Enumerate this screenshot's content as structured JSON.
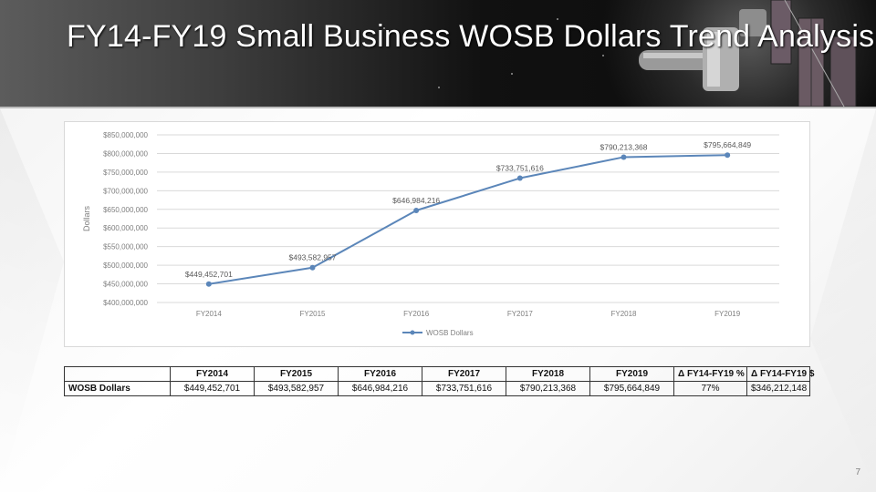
{
  "slide": {
    "title": "FY14-FY19 Small Business WOSB Dollars Trend Analysis",
    "page_number": "7"
  },
  "chart_data": {
    "type": "line",
    "x": [
      "FY2014",
      "FY2015",
      "FY2016",
      "FY2017",
      "FY2018",
      "FY2019"
    ],
    "series": [
      {
        "name": "WOSB Dollars",
        "values": [
          449452701,
          493582957,
          646984216,
          733751616,
          790213368,
          795664849
        ],
        "labels": [
          "$449,452,701",
          "$493,582,957",
          "$646,984,216",
          "$733,751,616",
          "$790,213,368",
          "$795,664,849"
        ],
        "color": "#5b86b9"
      }
    ],
    "ylabel": "Dollars",
    "xlabel": "",
    "ylim": [
      400000000,
      850000000
    ],
    "yticks": [
      400000000,
      450000000,
      500000000,
      550000000,
      600000000,
      650000000,
      700000000,
      750000000,
      800000000,
      850000000
    ],
    "ytick_labels": [
      "$400,000,000",
      "$450,000,000",
      "$500,000,000",
      "$550,000,000",
      "$600,000,000",
      "$650,000,000",
      "$700,000,000",
      "$750,000,000",
      "$800,000,000",
      "$850,000,000"
    ],
    "grid": true,
    "legend": "bottom",
    "gridline_color": "#d9d9d9"
  },
  "table": {
    "headers": [
      "",
      "FY2014",
      "FY2015",
      "FY2016",
      "FY2017",
      "FY2018",
      "FY2019",
      "Δ FY14-FY19 %",
      "Δ FY14-FY19 $"
    ],
    "rows": [
      [
        "WOSB Dollars",
        "$449,452,701",
        "$493,582,957",
        "$646,984,216",
        "$733,751,616",
        "$790,213,368",
        "$795,664,849",
        "77%",
        "$346,212,148"
      ]
    ]
  }
}
